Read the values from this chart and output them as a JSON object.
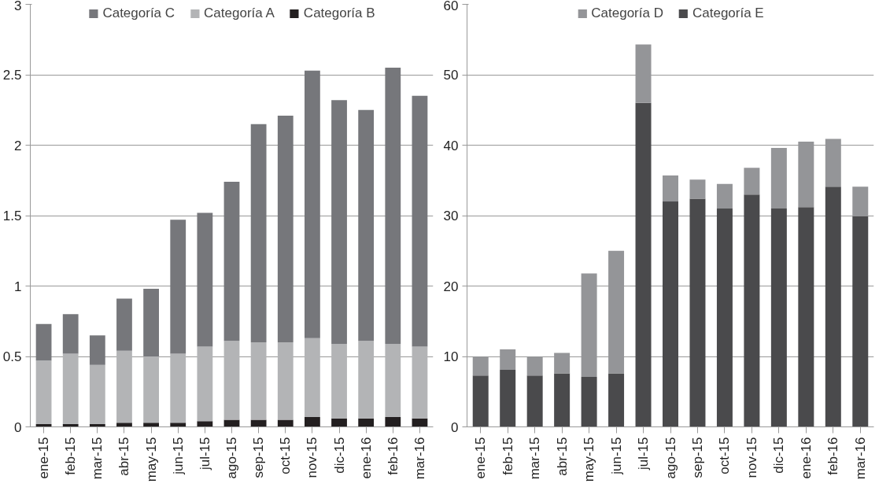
{
  "chart_data": [
    {
      "type": "bar",
      "stacked": true,
      "categories": [
        "ene-15",
        "feb-15",
        "mar-15",
        "abr-15",
        "may-15",
        "jun-15",
        "jul-15",
        "ago-15",
        "sep-15",
        "oct-15",
        "nov-15",
        "dic-15",
        "ene-16",
        "feb-16",
        "mar-16"
      ],
      "series": [
        {
          "name": "Categoría B",
          "color": "#231f20",
          "values": [
            0.02,
            0.02,
            0.02,
            0.03,
            0.03,
            0.03,
            0.04,
            0.05,
            0.05,
            0.05,
            0.07,
            0.06,
            0.06,
            0.07,
            0.06
          ]
        },
        {
          "name": "Categoría A",
          "color": "#b3b4b6",
          "values": [
            0.45,
            0.5,
            0.42,
            0.51,
            0.47,
            0.49,
            0.53,
            0.56,
            0.55,
            0.55,
            0.56,
            0.53,
            0.55,
            0.52,
            0.51
          ]
        },
        {
          "name": "Categoría C",
          "color": "#76777b",
          "values": [
            0.26,
            0.28,
            0.21,
            0.37,
            0.48,
            0.95,
            0.95,
            1.13,
            1.55,
            1.61,
            1.9,
            1.73,
            1.64,
            1.96,
            1.78
          ]
        }
      ],
      "ylim": [
        0,
        3
      ],
      "yticks": [
        0,
        0.5,
        1,
        1.5,
        2,
        2.5,
        3
      ],
      "grid": "y",
      "legend": "top"
    },
    {
      "type": "bar",
      "stacked": true,
      "categories": [
        "ene-15",
        "feb-15",
        "mar-15",
        "abr-15",
        "may-15",
        "jun-15",
        "jul-15",
        "ago-15",
        "sep-15",
        "oct-15",
        "nov-15",
        "dic-15",
        "ene-16",
        "feb-16",
        "mar-16"
      ],
      "series": [
        {
          "name": "Categoría E",
          "color": "#4a4a4c",
          "values": [
            7.3,
            8.1,
            7.3,
            7.6,
            7.1,
            7.6,
            46,
            32,
            32.4,
            31,
            33,
            31,
            31.2,
            34.1,
            29.9
          ]
        },
        {
          "name": "Categoría D",
          "color": "#949598",
          "values": [
            2.7,
            2.9,
            2.7,
            2.9,
            14.7,
            17.4,
            8.3,
            3.7,
            2.7,
            3.5,
            3.8,
            8.6,
            9.3,
            6.8,
            4.2
          ]
        }
      ],
      "ylim": [
        0,
        60
      ],
      "yticks": [
        0,
        10,
        20,
        30,
        40,
        50,
        60
      ],
      "grid": "y",
      "legend": "top"
    }
  ]
}
